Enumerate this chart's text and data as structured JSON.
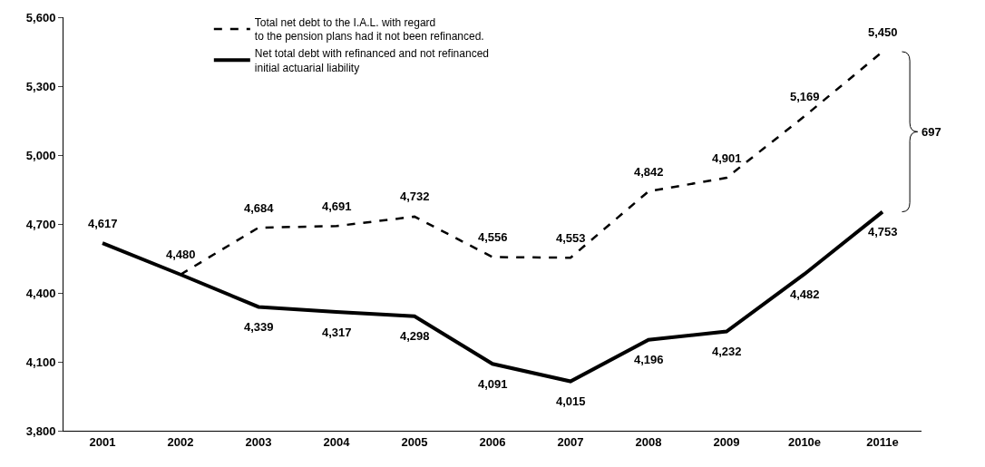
{
  "chart_data": {
    "type": "line",
    "categories": [
      "2001",
      "2002",
      "2003",
      "2004",
      "2005",
      "2006",
      "2007",
      "2008",
      "2009",
      "2010e",
      "2011e"
    ],
    "series": [
      {
        "name": "Total net debt to the I.A.L. with regard\nto the pension plans had it not been refinanced.",
        "color": "#000000",
        "line_style": "dashed",
        "values": [
          null,
          4480,
          4684,
          4691,
          4732,
          4556,
          4553,
          4842,
          4901,
          5169,
          5450
        ],
        "value_labels": [
          null,
          "4,480",
          "4,684",
          "4,691",
          "4,732",
          "4,556",
          "4,553",
          "4,842",
          "4,901",
          "5,169",
          "5,450"
        ]
      },
      {
        "name": "Net total debt with refinanced and not refinanced\ninitial actuarial liability",
        "color": "#000000",
        "line_style": "solid",
        "values": [
          4617,
          4480,
          4339,
          4317,
          4298,
          4091,
          4015,
          4196,
          4232,
          4482,
          4753
        ],
        "value_labels": [
          "4,617",
          null,
          "4,339",
          "4,317",
          "4,298",
          "4,091",
          "4,015",
          "4,196",
          "4,232",
          "4,482",
          "4,753"
        ]
      }
    ],
    "ylim": [
      3800,
      5600
    ],
    "yticks": [
      {
        "value": 3800,
        "label": "3,800"
      },
      {
        "value": 4100,
        "label": "4,100"
      },
      {
        "value": 4400,
        "label": "4,400"
      },
      {
        "value": 4700,
        "label": "4,700"
      },
      {
        "value": 5000,
        "label": "5,000"
      },
      {
        "value": 5300,
        "label": "5,300"
      },
      {
        "value": 5600,
        "label": "5,600"
      }
    ],
    "annotations": [
      "697"
    ],
    "legend": "top left",
    "marker": "none"
  }
}
